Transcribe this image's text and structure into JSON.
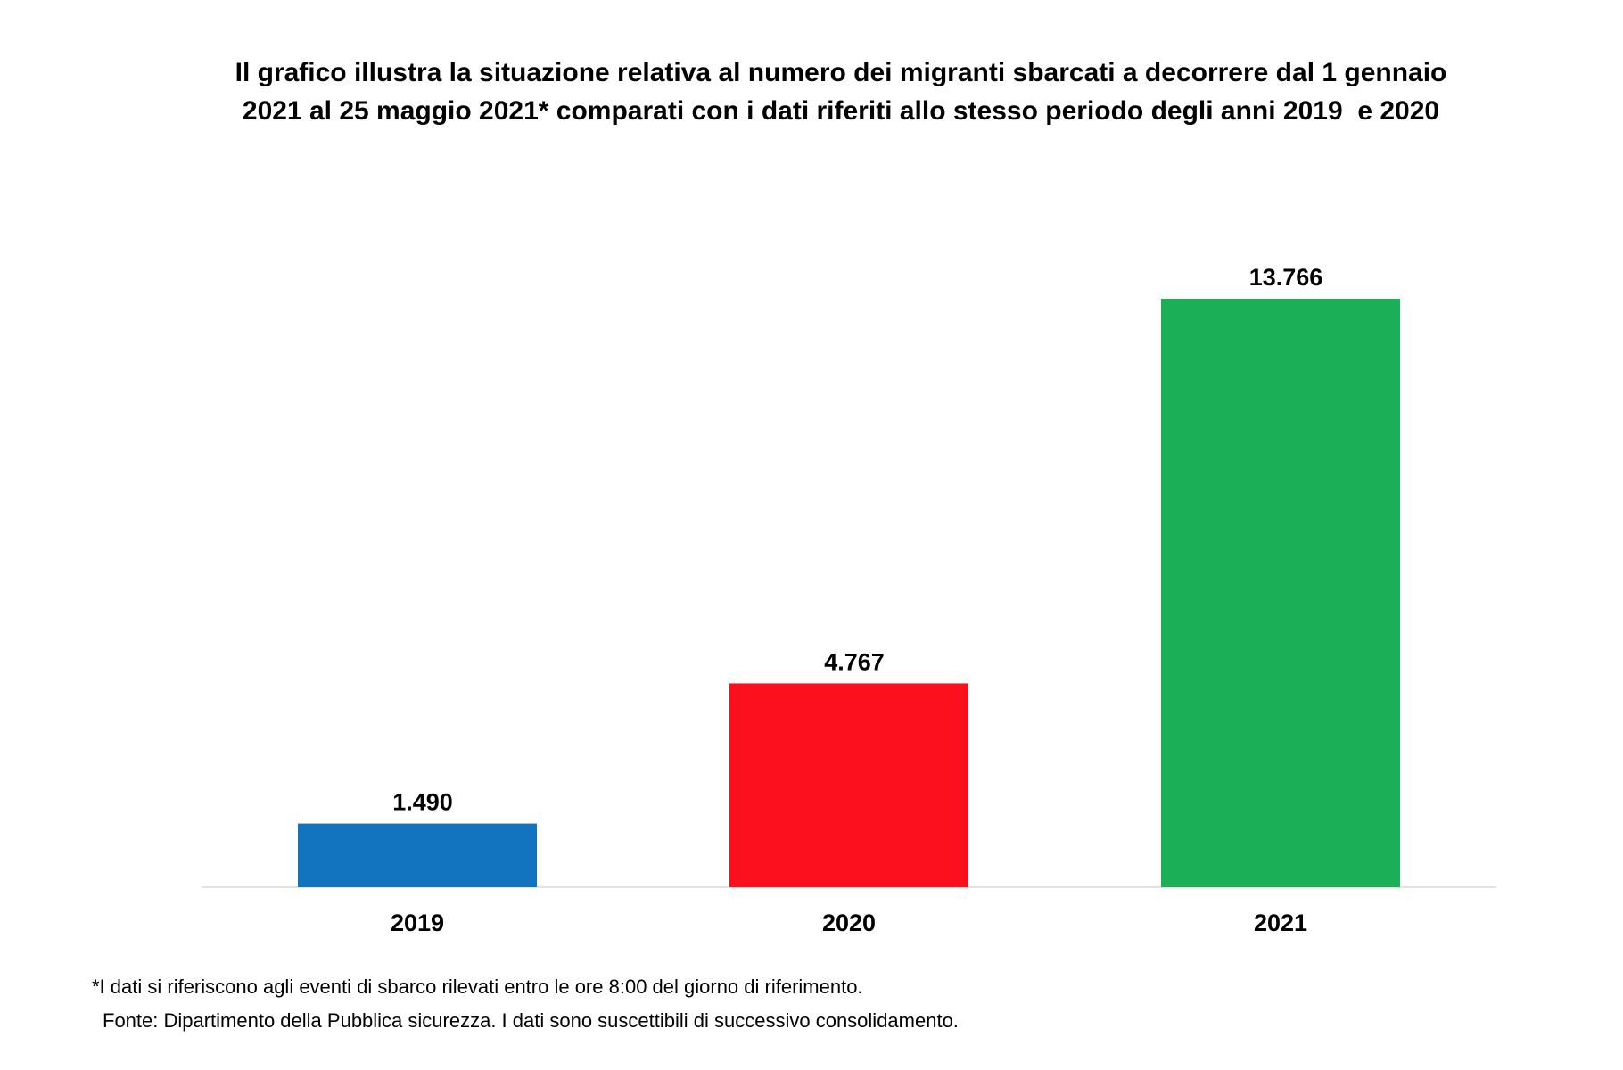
{
  "chart_data": {
    "type": "bar",
    "title": "Il grafico illustra la situazione relativa al numero dei migranti sbarcati a decorrere dal 1 gennaio 2021 al 25 maggio 2021* comparati con i dati riferiti allo stesso periodo degli anni 2019  e 2020",
    "categories": [
      "2019",
      "2020",
      "2021"
    ],
    "values": [
      1490,
      4767,
      13766
    ],
    "value_labels": [
      "1.490",
      "4.767",
      "13.766"
    ],
    "colors": [
      "#1273bf",
      "#fc101e",
      "#1bb058"
    ],
    "notes": [
      "*I dati si riferiscono agli eventi di sbarco rilevati entro le ore 8:00 del giorno di riferimento.",
      "Fonte: Dipartimento della Pubblica sicurezza. I dati sono suscettibili di successivo consolidamento."
    ]
  }
}
